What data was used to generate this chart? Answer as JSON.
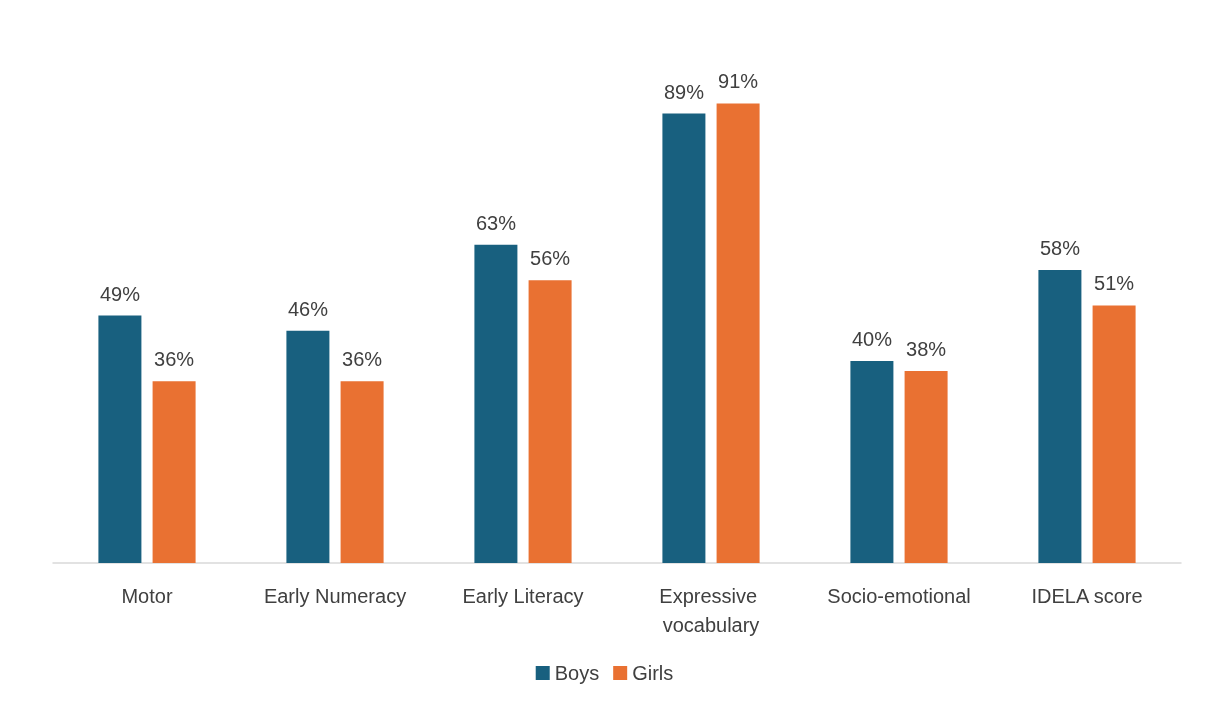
{
  "chart_data": {
    "type": "bar",
    "categories": [
      "Motor",
      "Early Numeracy",
      "Early Literacy",
      "Expressive vocabulary",
      "Socio-emotional",
      "IDELA score"
    ],
    "series": [
      {
        "name": "Boys",
        "color": "#18607f",
        "values": [
          49,
          46,
          63,
          89,
          40,
          58
        ],
        "value_labels": [
          "49%",
          "46%",
          "63%",
          "89%",
          "40%",
          "58%"
        ]
      },
      {
        "name": "Girls",
        "color": "#e97132",
        "values": [
          36,
          36,
          56,
          91,
          38,
          51
        ],
        "value_labels": [
          "36%",
          "36%",
          "56%",
          "91%",
          "38%",
          "51%"
        ]
      }
    ],
    "legend": "bottom"
  }
}
